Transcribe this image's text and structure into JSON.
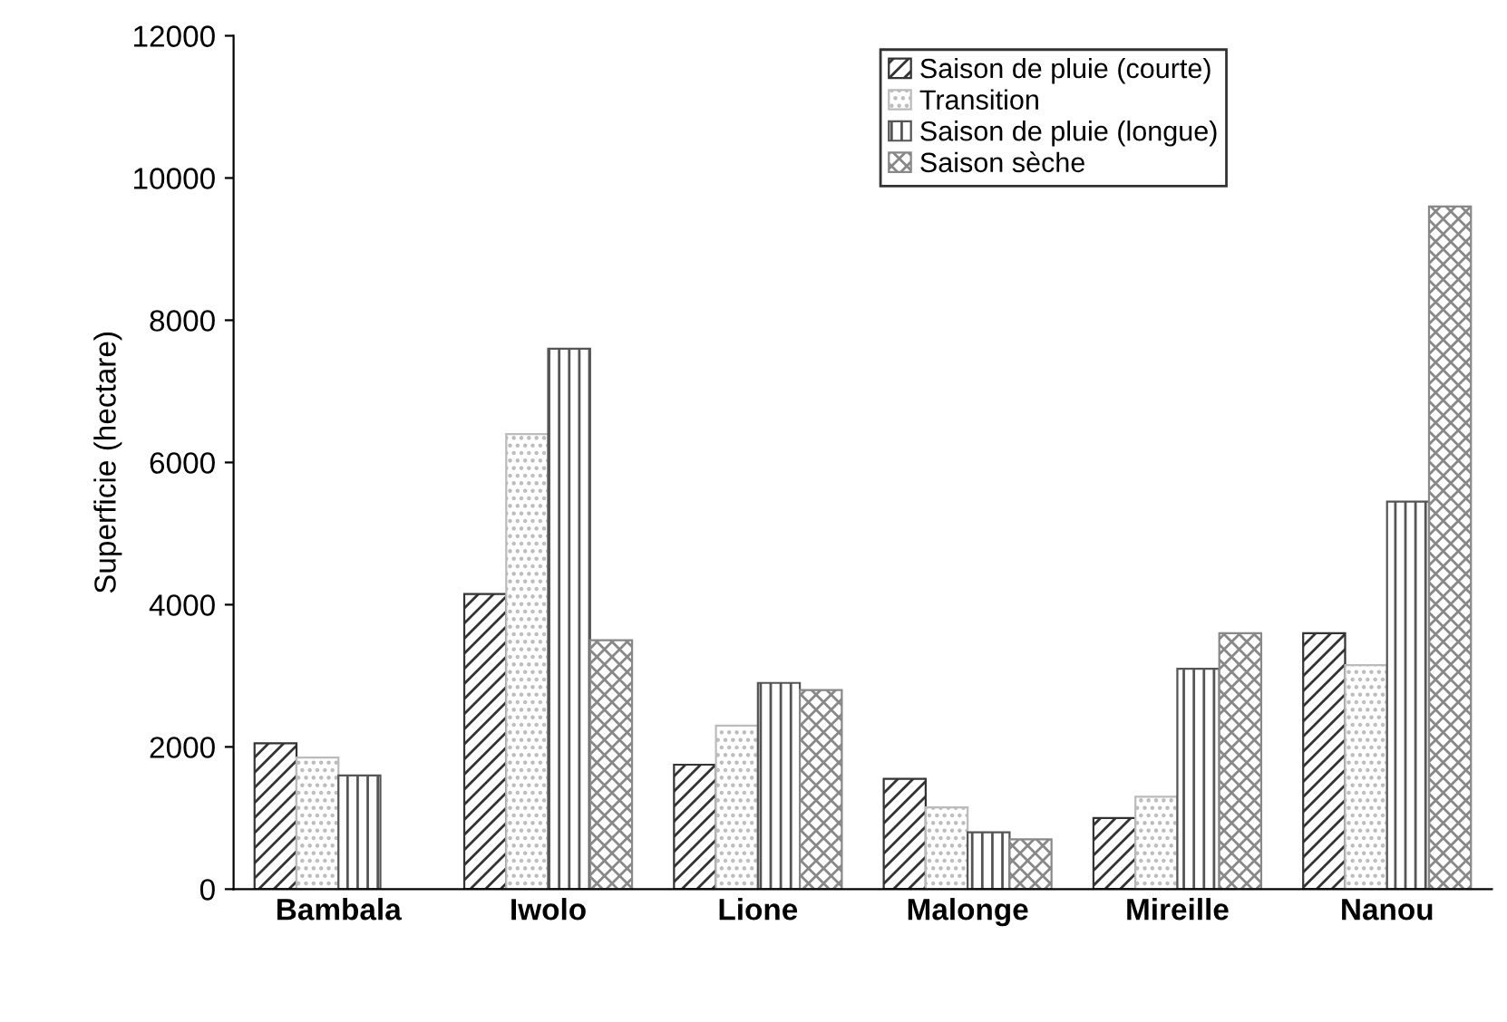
{
  "chart_data": {
    "type": "bar",
    "ylabel": "Superficie (hectare)",
    "categories": [
      "Bambala",
      "Iwolo",
      "Lione",
      "Malonge",
      "Mireille",
      "Nanou"
    ],
    "series": [
      {
        "name": "Saison de pluie (courte)",
        "color": "#333333",
        "values": [
          2050,
          4150,
          1750,
          1550,
          1000,
          3600
        ]
      },
      {
        "name": "Transition",
        "color": "#bbbbbb",
        "values": [
          1850,
          6400,
          2300,
          1150,
          1300,
          3150
        ]
      },
      {
        "name": "Saison de pluie (longue)",
        "color": "#555555",
        "values": [
          1600,
          7600,
          2900,
          800,
          3100,
          5450
        ]
      },
      {
        "name": "Saison sèche",
        "color": "#888888",
        "values": [
          null,
          3500,
          2800,
          700,
          3600,
          9600
        ]
      }
    ],
    "ylim": [
      0,
      12000
    ],
    "yticks": [
      0,
      2000,
      4000,
      6000,
      8000,
      10000,
      12000
    ],
    "grid": false,
    "legend": "top right"
  }
}
